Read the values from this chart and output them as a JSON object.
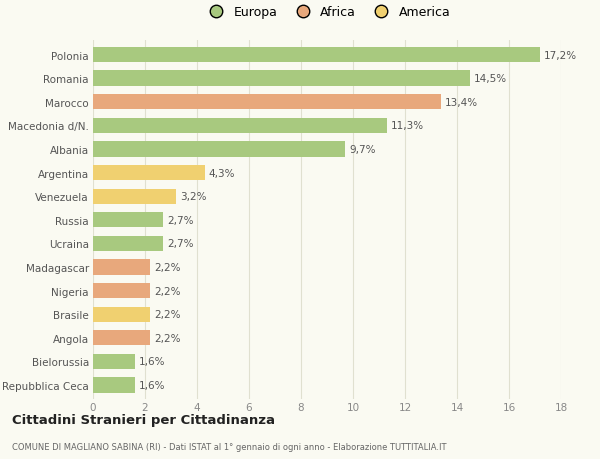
{
  "countries": [
    "Polonia",
    "Romania",
    "Marocco",
    "Macedonia d/N.",
    "Albania",
    "Argentina",
    "Venezuela",
    "Russia",
    "Ucraina",
    "Madagascar",
    "Nigeria",
    "Brasile",
    "Angola",
    "Bielorussia",
    "Repubblica Ceca"
  ],
  "values": [
    17.2,
    14.5,
    13.4,
    11.3,
    9.7,
    4.3,
    3.2,
    2.7,
    2.7,
    2.2,
    2.2,
    2.2,
    2.2,
    1.6,
    1.6
  ],
  "labels": [
    "17,2%",
    "14,5%",
    "13,4%",
    "11,3%",
    "9,7%",
    "4,3%",
    "3,2%",
    "2,7%",
    "2,7%",
    "2,2%",
    "2,2%",
    "2,2%",
    "2,2%",
    "1,6%",
    "1,6%"
  ],
  "continents": [
    "Europa",
    "Europa",
    "Africa",
    "Europa",
    "Europa",
    "America",
    "America",
    "Europa",
    "Europa",
    "Africa",
    "Africa",
    "America",
    "Africa",
    "Europa",
    "Europa"
  ],
  "colors": {
    "Europa": "#a8c97f",
    "Africa": "#e8a87c",
    "America": "#f0d070"
  },
  "title1": "Cittadini Stranieri per Cittadinanza",
  "title2": "COMUNE DI MAGLIANO SABINA (RI) - Dati ISTAT al 1° gennaio di ogni anno - Elaborazione TUTTITALIA.IT",
  "xlim": [
    0,
    18
  ],
  "xticks": [
    0,
    2,
    4,
    6,
    8,
    10,
    12,
    14,
    16,
    18
  ],
  "background_color": "#fafaf2",
  "grid_color": "#e0e0d0",
  "bar_height": 0.65,
  "label_fontsize": 7.5,
  "tick_fontsize": 7.5,
  "legend_fontsize": 9.0
}
